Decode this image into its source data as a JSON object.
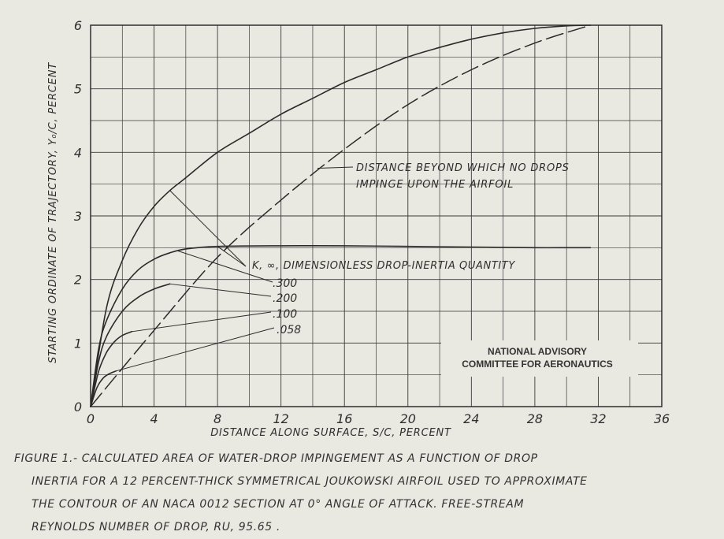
{
  "chart_data": {
    "type": "line",
    "xlabel": "Distance along surface, s/c, percent",
    "ylabel": "Starting ordinate of trajectory, y₀/c, percent",
    "xlim": [
      0,
      36
    ],
    "ylim": [
      0,
      6
    ],
    "x_ticks": [
      "0",
      "4",
      "8",
      "12",
      "16",
      "20",
      "24",
      "28",
      "32",
      "36"
    ],
    "y_ticks": [
      "0",
      "1",
      "2",
      "3",
      "4",
      "5",
      "6"
    ],
    "grid": true,
    "series": [
      {
        "name": "∞",
        "style": "solid",
        "x": [
          0,
          1,
          2,
          3,
          4,
          5,
          6,
          8,
          10,
          12,
          14,
          16,
          18,
          20,
          22,
          24,
          26,
          28,
          30,
          31.5
        ],
        "y": [
          0,
          1.55,
          2.3,
          2.8,
          3.15,
          3.4,
          3.6,
          4.0,
          4.3,
          4.6,
          4.85,
          5.1,
          5.3,
          5.5,
          5.65,
          5.78,
          5.88,
          5.95,
          5.99,
          6.0
        ]
      },
      {
        "name": ".300",
        "style": "solid",
        "x": [
          0,
          0.5,
          1,
          2,
          3,
          4,
          5,
          6,
          8,
          12,
          16,
          20,
          24,
          28,
          30,
          31.5
        ],
        "y": [
          0,
          0.9,
          1.35,
          1.85,
          2.15,
          2.32,
          2.42,
          2.48,
          2.52,
          2.53,
          2.53,
          2.52,
          2.51,
          2.5,
          2.5,
          2.5
        ]
      },
      {
        "name": ".200",
        "style": "solid",
        "x": [
          0,
          0.5,
          1,
          2,
          3,
          4,
          5
        ],
        "y": [
          0,
          0.7,
          1.1,
          1.5,
          1.72,
          1.85,
          1.93
        ]
      },
      {
        "name": ".100",
        "style": "solid",
        "x": [
          0,
          0.5,
          1,
          1.5,
          2,
          2.6
        ],
        "y": [
          0,
          0.55,
          0.85,
          1.02,
          1.12,
          1.18
        ]
      },
      {
        "name": ".058",
        "style": "solid",
        "x": [
          0,
          0.4,
          0.8,
          1.2,
          1.6
        ],
        "y": [
          0,
          0.3,
          0.45,
          0.52,
          0.56
        ]
      },
      {
        "name": "Distance beyond which no drops impinge upon the airfoil",
        "style": "dashed",
        "x": [
          0,
          4,
          8,
          12,
          16,
          20,
          24,
          28,
          31.5
        ],
        "y": [
          0,
          1.2,
          2.35,
          3.25,
          4.05,
          4.75,
          5.3,
          5.72,
          6.0
        ]
      }
    ]
  },
  "labels": {
    "dashed_annotation_line1": "Distance beyond which no drops",
    "dashed_annotation_line2": "impinge upon the airfoil",
    "k_label": "K, ∞, Dimensionless drop-inertia quantity",
    "k300": ".300",
    "k200": ".200",
    "k100": ".100",
    "k058": ".058"
  },
  "stamp": {
    "line1": "NATIONAL ADVISORY",
    "line2": "COMMITTEE FOR AERONAUTICS"
  },
  "caption": {
    "line1": "Figure 1.- Calculated area of water-drop impingement as a function of drop",
    "line2": "inertia for a 12 percent-thick symmetrical Joukowski airfoil used to approximate",
    "line3": "the contour of an NACA 0012 section at 0° angle of attack. Free-stream",
    "line4": "Reynolds Number of drop, RU, 95.65 ."
  }
}
